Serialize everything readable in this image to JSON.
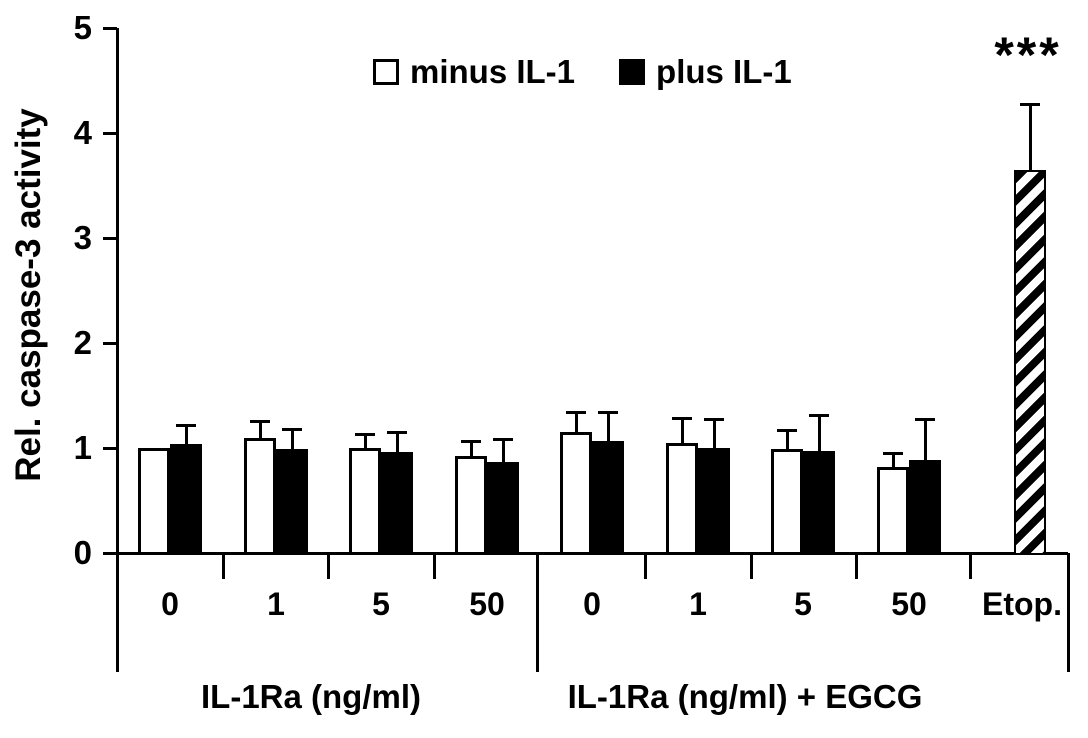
{
  "chart_data": {
    "type": "bar",
    "title": "",
    "ylabel": "Rel. caspase-3 activity",
    "xlabel": "",
    "ylim": [
      0,
      5
    ],
    "yticks": [
      "0",
      "1",
      "2",
      "3",
      "4",
      "5"
    ],
    "grid": false,
    "legend_position": "top-center",
    "legend": [
      {
        "label": "minus IL-1",
        "fill": "#ffffff"
      },
      {
        "label": "plus IL-1",
        "fill": "#000000"
      }
    ],
    "groups": [
      {
        "label": "IL-1Ra (ng/ml)",
        "categories": [
          "0",
          "1",
          "5",
          "50"
        ],
        "minus": {
          "values": [
            1.0,
            1.1,
            1.0,
            0.92
          ],
          "errors": [
            0,
            0.15,
            0.13,
            0.14
          ]
        },
        "plus": {
          "values": [
            1.04,
            0.99,
            0.96,
            0.87
          ],
          "errors": [
            0.17,
            0.19,
            0.19,
            0.21
          ]
        }
      },
      {
        "label": "IL-1Ra (ng/ml) + EGCG",
        "categories": [
          "0",
          "1",
          "5",
          "50"
        ],
        "minus": {
          "values": [
            1.15,
            1.05,
            0.99,
            0.82
          ],
          "errors": [
            0.19,
            0.23,
            0.18,
            0.13
          ]
        },
        "plus": {
          "values": [
            1.07,
            1.0,
            0.97,
            0.89
          ],
          "errors": [
            0.27,
            0.27,
            0.34,
            0.38
          ]
        }
      }
    ],
    "etoposide_bar": {
      "category": "Etop.",
      "value": 3.65,
      "error": 0.62,
      "fill": "diagonal-hatch",
      "annotation": "***"
    },
    "style": {
      "background": "#ffffff",
      "axis_color": "#000000",
      "bar_outline": "#000000",
      "minus_fill": "#ffffff",
      "plus_fill": "#000000"
    }
  }
}
